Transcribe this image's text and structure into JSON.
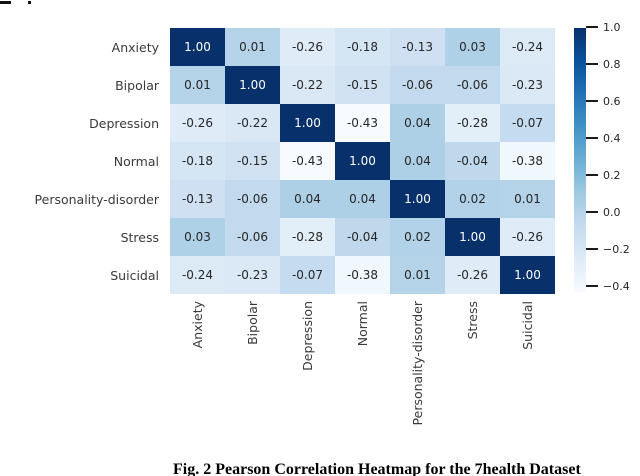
{
  "caption": {
    "text": "Fig. 2 Pearson Correlation Heatmap for the 7health Dataset"
  },
  "chart_data": {
    "type": "heatmap",
    "title": "",
    "xlabel": "",
    "ylabel": "",
    "categories": [
      "Anxiety",
      "Bipolar",
      "Depression",
      "Normal",
      "Personality-disorder",
      "Stress",
      "Suicidal"
    ],
    "matrix": [
      [
        1.0,
        0.01,
        -0.26,
        -0.18,
        -0.13,
        0.03,
        -0.24
      ],
      [
        0.01,
        1.0,
        -0.22,
        -0.15,
        -0.06,
        -0.06,
        -0.23
      ],
      [
        -0.26,
        -0.22,
        1.0,
        -0.43,
        0.04,
        -0.28,
        -0.07
      ],
      [
        -0.18,
        -0.15,
        -0.43,
        1.0,
        0.04,
        -0.04,
        -0.38
      ],
      [
        -0.13,
        -0.06,
        0.04,
        0.04,
        1.0,
        0.02,
        0.01
      ],
      [
        0.03,
        -0.06,
        -0.28,
        -0.04,
        0.02,
        1.0,
        -0.26
      ],
      [
        -0.24,
        -0.23,
        -0.07,
        -0.38,
        0.01,
        -0.26,
        1.0
      ]
    ],
    "annotations": true,
    "value_decimals": 2,
    "colormap": "Blues",
    "vmin": -0.43,
    "vmax": 1.0,
    "grid": false,
    "colorbar": {
      "position": "right",
      "ticks": [
        "1.0",
        "0.8",
        "0.6",
        "0.4",
        "0.2",
        "0.0",
        "−0.2",
        "−0.4"
      ]
    },
    "colors": {
      "colormap_dark_end": "#08306b",
      "colormap_light_end": "#f7fbff",
      "annotation_text_light_cell": "#262626",
      "annotation_text_dark_cell": "#ffffff"
    }
  }
}
